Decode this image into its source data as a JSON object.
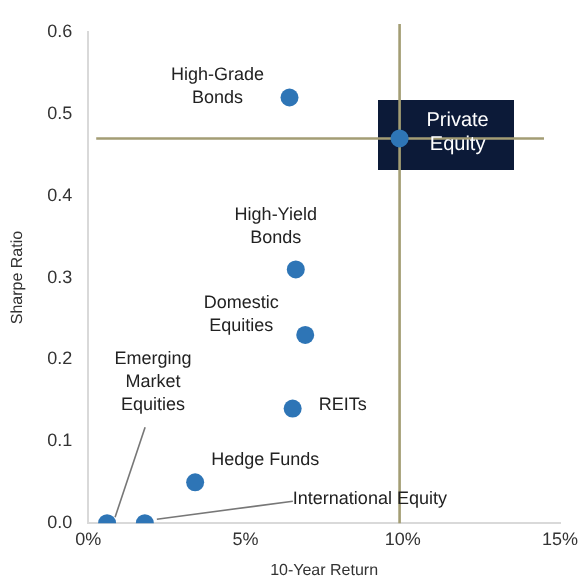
{
  "chart_data": {
    "type": "scatter",
    "xlabel": "10-Year Return",
    "ylabel": "Sharpe Ratio",
    "x": [
      6.4,
      9.9,
      6.6,
      6.9,
      6.5,
      3.4,
      0.6,
      1.8
    ],
    "series": [
      {
        "color": "#2e75b6",
        "values": [
          0.52,
          0.47,
          0.31,
          0.23,
          0.14,
          0.05,
          0.0,
          0.0
        ]
      }
    ],
    "xlim": [
      0,
      15
    ],
    "xticks": [
      {
        "value": 0,
        "label": "0%"
      },
      {
        "value": 5,
        "label": "5%"
      },
      {
        "value": 10,
        "label": "10%"
      },
      {
        "value": 15,
        "label": "15%"
      }
    ],
    "ylim": [
      0,
      0.6
    ],
    "yticks": [
      {
        "value": 0,
        "label": "0.0"
      },
      0.1,
      0.2,
      0.3,
      0.4,
      0.5,
      0.6
    ],
    "ref_lines": [
      {
        "axis": "x",
        "value": 9.9,
        "color": "#a39d74"
      },
      {
        "axis": "y",
        "value": 0.47,
        "color": "#a39d74"
      }
    ],
    "annotations": [
      {
        "text": "High-Grade Bonds",
        "x": 6.4,
        "y": 0.52
      },
      {
        "text": "Private Equity",
        "x": 9.9,
        "y": 0.47
      },
      {
        "text": "High-Yield Bonds",
        "x": 6.6,
        "y": 0.31
      },
      {
        "text": "Domestic Equities",
        "x": 6.9,
        "y": 0.23
      },
      {
        "text": "REITs",
        "x": 6.5,
        "y": 0.14
      },
      {
        "text": "Hedge Funds",
        "x": 3.4,
        "y": 0.05
      },
      {
        "text": "Emerging Market Equities",
        "x": 0.6,
        "y": 0.0
      },
      {
        "text": "International Equity",
        "x": 1.8,
        "y": 0.0
      }
    ],
    "grid": false,
    "legend": false,
    "marker": "circle"
  }
}
